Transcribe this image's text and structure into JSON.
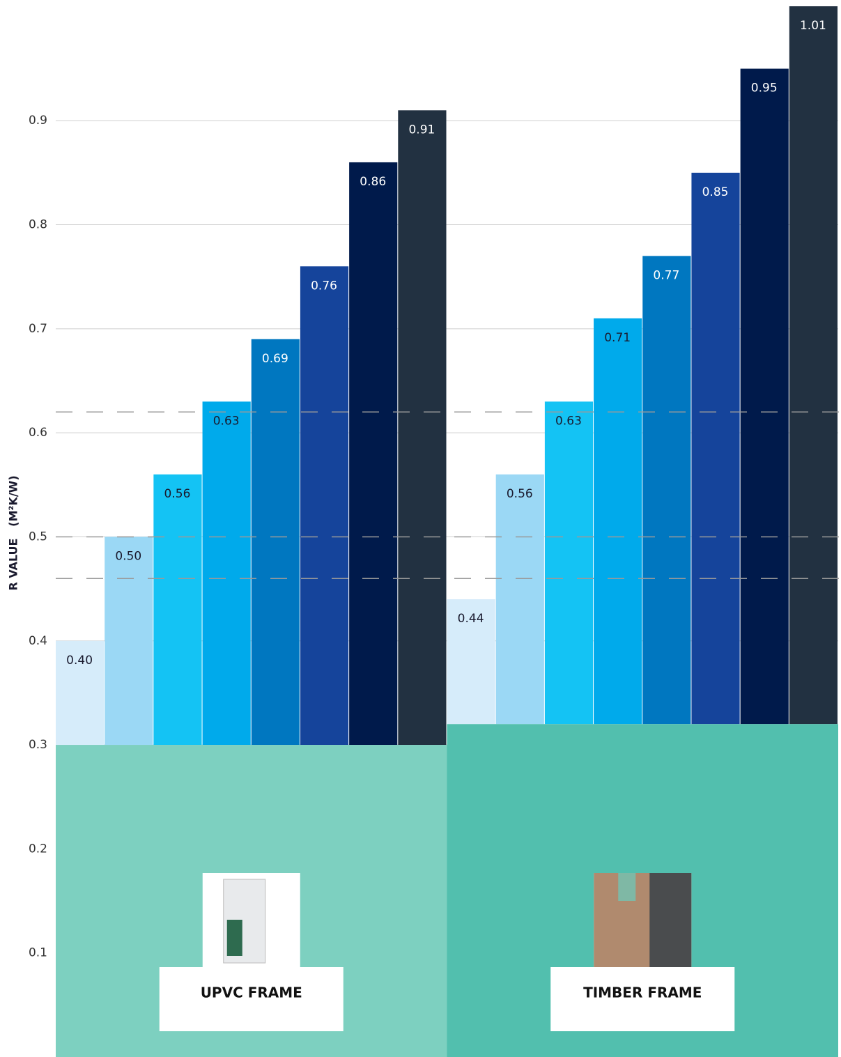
{
  "chart_data": {
    "type": "bar",
    "y_label": "R VALUE   (M²K/W)",
    "ylim": [
      0,
      1.01
    ],
    "yticks": [
      0.1,
      0.2,
      0.3,
      0.4,
      0.5,
      0.6,
      0.7,
      0.8,
      0.9
    ],
    "grid": true,
    "reference_lines": [
      0.62,
      0.5,
      0.46
    ],
    "bar_colors": [
      "#d6ecfa",
      "#9bd8f5",
      "#14c3f4",
      "#00aaeb",
      "#0077c0",
      "#15449b",
      "#001a4b",
      "#223141"
    ],
    "groups": [
      {
        "name": "UPVC FRAME",
        "color": "#7dd0c0",
        "base": 0.3,
        "values": [
          0.4,
          0.5,
          0.56,
          0.63,
          0.69,
          0.76,
          0.86,
          0.91
        ],
        "value_labels": [
          "0.40",
          "0.50",
          "0.56",
          "0.63",
          "0.69",
          "0.76",
          "0.86",
          "0.91"
        ]
      },
      {
        "name": "TIMBER FRAME",
        "color": "#52bfae",
        "base": 0.32,
        "values": [
          0.44,
          0.56,
          0.63,
          0.71,
          0.77,
          0.85,
          0.95,
          1.01
        ],
        "value_labels": [
          "0.44",
          "0.56",
          "0.63",
          "0.71",
          "0.77",
          "0.85",
          "0.95",
          "1.01"
        ]
      }
    ]
  }
}
